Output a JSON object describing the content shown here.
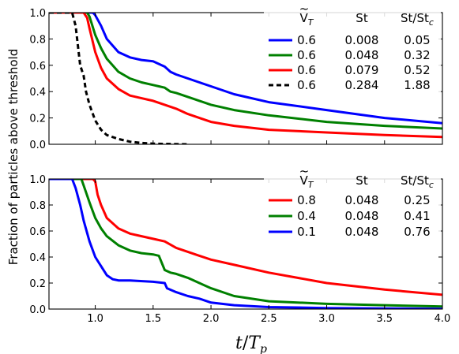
{
  "chart_data": [
    {
      "type": "line",
      "xlim": [
        0.6,
        4.0
      ],
      "ylim": [
        0.0,
        1.0
      ],
      "x_ticks": [
        1.0,
        1.5,
        2.0,
        2.5,
        3.0,
        3.5,
        4.0
      ],
      "y_ticks": [
        "0.0",
        "0.2",
        "0.4",
        "0.6",
        "0.8",
        "1.0"
      ],
      "show_x_tick_labels": false,
      "legend": {
        "placement": "top-right",
        "header": [
          "Ṽ_T",
          "St",
          "St/St_c"
        ],
        "rows": [
          [
            "0.6",
            "0.008",
            "0.05"
          ],
          [
            "0.6",
            "0.048",
            "0.32"
          ],
          [
            "0.6",
            "0.079",
            "0.52"
          ],
          [
            "0.6",
            "0.284",
            "1.88"
          ]
        ]
      },
      "series": [
        {
          "color": "#0000ff",
          "style": "solid",
          "x": [
            0.6,
            0.95,
            0.98,
            1.0,
            1.05,
            1.1,
            1.2,
            1.3,
            1.4,
            1.5,
            1.55,
            1.6,
            1.65,
            1.7,
            1.8,
            1.9,
            2.0,
            2.2,
            2.5,
            3.0,
            3.5,
            4.0
          ],
          "y": [
            1.0,
            1.0,
            1.0,
            0.98,
            0.9,
            0.8,
            0.7,
            0.66,
            0.64,
            0.63,
            0.61,
            0.59,
            0.55,
            0.53,
            0.5,
            0.47,
            0.44,
            0.38,
            0.32,
            0.26,
            0.2,
            0.16
          ]
        },
        {
          "color": "#008000",
          "style": "solid",
          "x": [
            0.6,
            0.93,
            0.95,
            1.0,
            1.05,
            1.1,
            1.2,
            1.3,
            1.4,
            1.5,
            1.55,
            1.6,
            1.65,
            1.7,
            1.8,
            1.9,
            2.0,
            2.2,
            2.5,
            3.0,
            3.5,
            4.0
          ],
          "y": [
            1.0,
            1.0,
            0.97,
            0.83,
            0.73,
            0.65,
            0.55,
            0.5,
            0.47,
            0.45,
            0.44,
            0.43,
            0.4,
            0.39,
            0.36,
            0.33,
            0.3,
            0.26,
            0.22,
            0.17,
            0.14,
            0.12
          ]
        },
        {
          "color": "#ff0000",
          "style": "solid",
          "x": [
            0.6,
            0.9,
            0.93,
            0.95,
            1.0,
            1.05,
            1.1,
            1.2,
            1.3,
            1.4,
            1.5,
            1.6,
            1.7,
            1.8,
            1.9,
            2.0,
            2.2,
            2.5,
            3.0,
            3.5,
            4.0
          ],
          "y": [
            1.0,
            1.0,
            0.96,
            0.88,
            0.7,
            0.58,
            0.5,
            0.42,
            0.37,
            0.35,
            0.33,
            0.3,
            0.27,
            0.23,
            0.2,
            0.17,
            0.14,
            0.11,
            0.09,
            0.07,
            0.055
          ]
        },
        {
          "color": "#000000",
          "style": "dashed",
          "x": [
            0.6,
            0.8,
            0.83,
            0.85,
            0.87,
            0.9,
            0.92,
            0.95,
            1.0,
            1.05,
            1.1,
            1.2,
            1.3,
            1.4,
            1.5,
            1.6,
            1.7,
            1.8
          ],
          "y": [
            1.0,
            1.0,
            0.9,
            0.75,
            0.6,
            0.52,
            0.4,
            0.3,
            0.18,
            0.11,
            0.07,
            0.04,
            0.02,
            0.01,
            0.005,
            0.003,
            0.001,
            0.0
          ]
        }
      ]
    },
    {
      "type": "line",
      "xlim": [
        0.6,
        4.0
      ],
      "ylim": [
        0.0,
        1.0
      ],
      "x_ticks": [
        1.0,
        1.5,
        2.0,
        2.5,
        3.0,
        3.5,
        4.0
      ],
      "x_tick_labels": [
        "1.0",
        "1.5",
        "2.0",
        "2.5",
        "3.0",
        "3.5",
        "4.0"
      ],
      "y_ticks": [
        "0.0",
        "0.2",
        "0.4",
        "0.6",
        "0.8",
        "1.0"
      ],
      "show_x_tick_labels": true,
      "legend": {
        "placement": "top-right",
        "header": [
          "Ṽ_T",
          "St",
          "St/St_c"
        ],
        "rows": [
          [
            "0.8",
            "0.048",
            "0.25"
          ],
          [
            "0.4",
            "0.048",
            "0.41"
          ],
          [
            "0.1",
            "0.048",
            "0.76"
          ]
        ]
      },
      "series": [
        {
          "color": "#ff0000",
          "style": "solid",
          "x": [
            0.6,
            0.98,
            1.0,
            1.02,
            1.05,
            1.1,
            1.2,
            1.3,
            1.4,
            1.5,
            1.6,
            1.7,
            1.8,
            1.9,
            2.0,
            2.2,
            2.5,
            3.0,
            3.5,
            4.0
          ],
          "y": [
            1.0,
            1.0,
            0.98,
            0.88,
            0.8,
            0.7,
            0.62,
            0.58,
            0.56,
            0.54,
            0.52,
            0.47,
            0.44,
            0.41,
            0.38,
            0.34,
            0.28,
            0.2,
            0.15,
            0.11
          ]
        },
        {
          "color": "#008000",
          "style": "solid",
          "x": [
            0.6,
            0.88,
            0.9,
            0.95,
            1.0,
            1.05,
            1.1,
            1.2,
            1.3,
            1.4,
            1.5,
            1.55,
            1.6,
            1.65,
            1.7,
            1.8,
            1.9,
            2.0,
            2.2,
            2.5,
            3.0,
            3.5,
            4.0
          ],
          "y": [
            1.0,
            1.0,
            0.95,
            0.82,
            0.7,
            0.62,
            0.56,
            0.49,
            0.45,
            0.43,
            0.42,
            0.41,
            0.3,
            0.28,
            0.27,
            0.24,
            0.2,
            0.16,
            0.1,
            0.06,
            0.04,
            0.03,
            0.02
          ]
        },
        {
          "color": "#0000ff",
          "style": "solid",
          "x": [
            0.6,
            0.8,
            0.83,
            0.87,
            0.9,
            0.95,
            1.0,
            1.05,
            1.1,
            1.15,
            1.2,
            1.3,
            1.5,
            1.6,
            1.62,
            1.7,
            1.8,
            1.9,
            2.0,
            2.2,
            2.5,
            3.0,
            3.5,
            4.0
          ],
          "y": [
            1.0,
            1.0,
            0.93,
            0.8,
            0.68,
            0.52,
            0.4,
            0.33,
            0.26,
            0.23,
            0.22,
            0.22,
            0.21,
            0.2,
            0.16,
            0.13,
            0.1,
            0.08,
            0.05,
            0.03,
            0.015,
            0.008,
            0.004,
            0.002
          ]
        }
      ]
    }
  ],
  "ylabel": "Fraction of particles above threshold",
  "xlabel": "t/T_p"
}
